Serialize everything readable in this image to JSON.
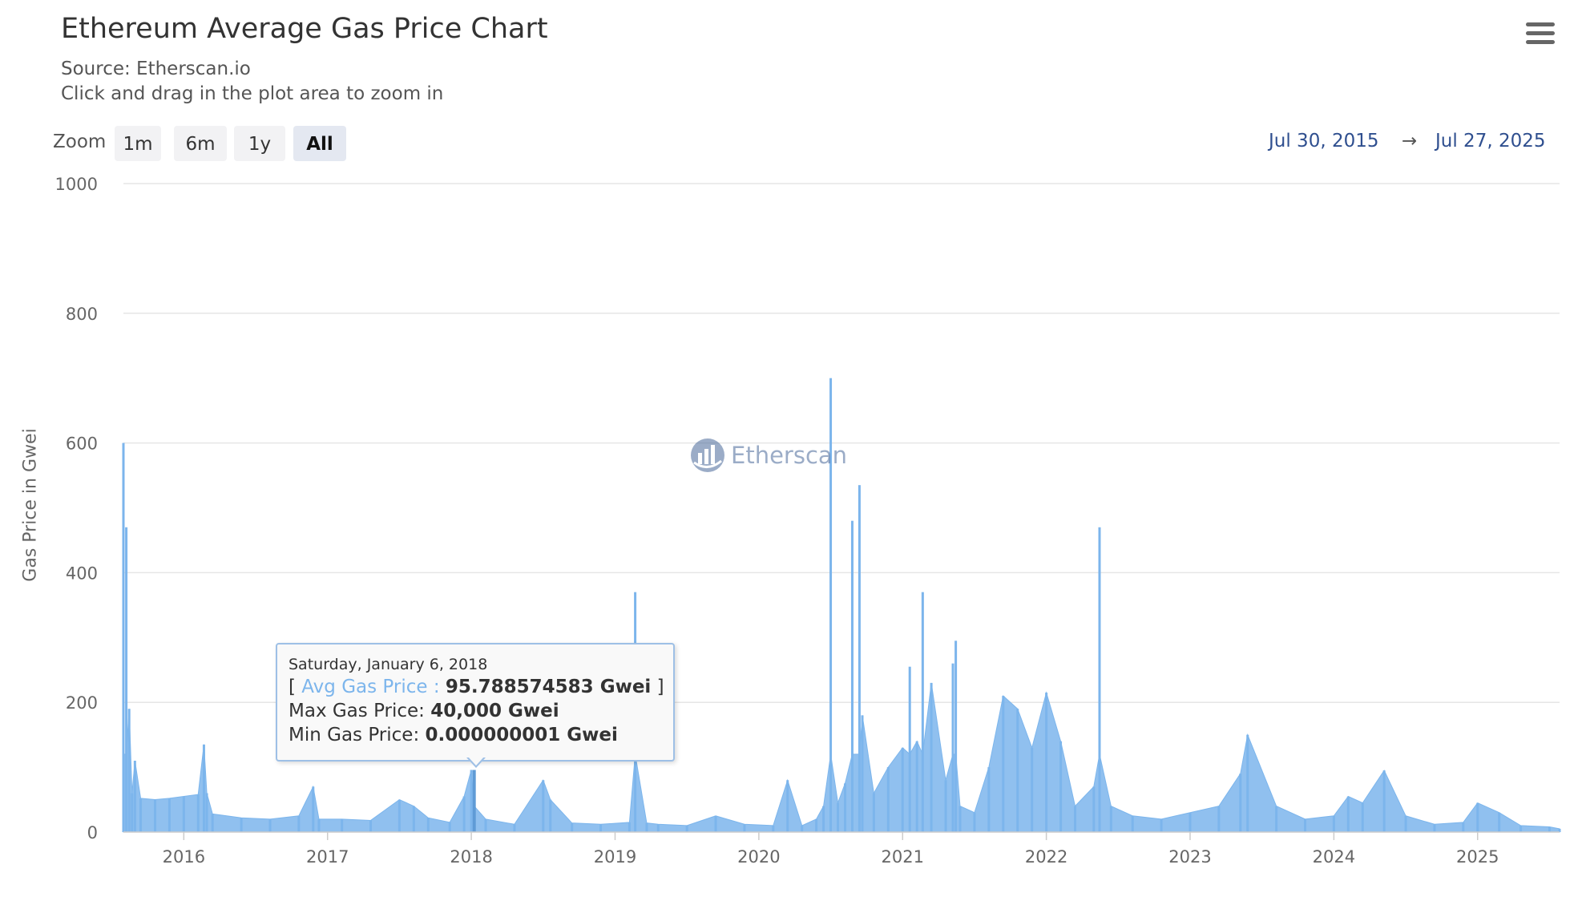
{
  "menu_icon": "hamburger-menu-icon",
  "zoom": {
    "label": "Zoom",
    "buttons": [
      "1m",
      "6m",
      "1y",
      "All"
    ],
    "active": "All"
  },
  "range": {
    "from": "Jul 30, 2015",
    "arrow": "→",
    "to": "Jul 27, 2025"
  },
  "watermark": {
    "text": "Etherscan",
    "icon": "etherscan-logo-icon"
  },
  "tooltip": {
    "date": "Saturday, January 6, 2018",
    "open_bracket": "[ ",
    "series_label": "Avg Gas Price : ",
    "series_value": "95.788574583 Gwei",
    "close_bracket": " ]",
    "max_label": "Max Gas Price: ",
    "max_value": "40,000 Gwei",
    "min_label": "Min Gas Price: ",
    "min_value": "0.000000001 Gwei",
    "date_year": 2018.02
  },
  "colors": {
    "series": "#7cb5ec",
    "grid": "#e6e6e6",
    "range_text": "#2f4f8f"
  },
  "chart_data": {
    "type": "bar",
    "title": "Ethereum Average Gas Price Chart",
    "subtitle": "Source: Etherscan.io",
    "subtitle2": "Click and drag in the plot area to zoom in",
    "xlabel": "",
    "ylabel": "Gas Price in Gwei",
    "xlim": [
      2015.58,
      2025.57
    ],
    "ylim": [
      0,
      1000
    ],
    "y_ticks": [
      0,
      200,
      400,
      600,
      800,
      1000
    ],
    "x_ticks": [
      2016,
      2017,
      2018,
      2019,
      2020,
      2021,
      2022,
      2023,
      2024,
      2025
    ],
    "x_tick_labels": [
      "2016",
      "2017",
      "2018",
      "2019",
      "2020",
      "2021",
      "2022",
      "2023",
      "2024",
      "2025"
    ],
    "grid": true,
    "series": [
      {
        "name": "Avg Gas Price",
        "unit": "Gwei",
        "x_year": [
          2015.58,
          2015.6,
          2015.62,
          2015.64,
          2015.66,
          2015.7,
          2015.8,
          2015.9,
          2016.0,
          2016.1,
          2016.14,
          2016.16,
          2016.2,
          2016.4,
          2016.6,
          2016.8,
          2016.9,
          2016.94,
          2017.1,
          2017.3,
          2017.5,
          2017.6,
          2017.7,
          2017.85,
          2017.95,
          2018.0,
          2018.02,
          2018.1,
          2018.3,
          2018.5,
          2018.55,
          2018.7,
          2018.9,
          2019.1,
          2019.14,
          2019.22,
          2019.3,
          2019.5,
          2019.7,
          2019.9,
          2020.1,
          2020.2,
          2020.3,
          2020.4,
          2020.45,
          2020.5,
          2020.55,
          2020.6,
          2020.65,
          2020.7,
          2020.72,
          2020.8,
          2020.9,
          2021.0,
          2021.05,
          2021.1,
          2021.14,
          2021.2,
          2021.3,
          2021.35,
          2021.37,
          2021.4,
          2021.5,
          2021.6,
          2021.7,
          2021.8,
          2021.9,
          2022.0,
          2022.1,
          2022.2,
          2022.33,
          2022.37,
          2022.45,
          2022.6,
          2022.8,
          2023.0,
          2023.2,
          2023.35,
          2023.4,
          2023.6,
          2023.8,
          2024.0,
          2024.1,
          2024.2,
          2024.35,
          2024.5,
          2024.7,
          2024.9,
          2025.0,
          2025.15,
          2025.3,
          2025.5,
          2025.57
        ],
        "values": [
          600,
          470,
          190,
          60,
          110,
          52,
          50,
          52,
          55,
          58,
          135,
          60,
          28,
          22,
          20,
          25,
          70,
          20,
          20,
          18,
          50,
          40,
          22,
          15,
          55,
          95.79,
          40,
          20,
          12,
          80,
          50,
          14,
          12,
          15,
          370,
          14,
          12,
          10,
          25,
          12,
          10,
          80,
          10,
          20,
          40,
          700,
          45,
          75,
          480,
          535,
          180,
          60,
          100,
          130,
          255,
          140,
          370,
          230,
          80,
          260,
          295,
          40,
          30,
          100,
          210,
          190,
          130,
          215,
          140,
          40,
          70,
          470,
          40,
          25,
          20,
          30,
          40,
          90,
          150,
          40,
          20,
          25,
          55,
          45,
          95,
          25,
          12,
          15,
          45,
          30,
          10,
          8,
          5
        ]
      }
    ]
  }
}
